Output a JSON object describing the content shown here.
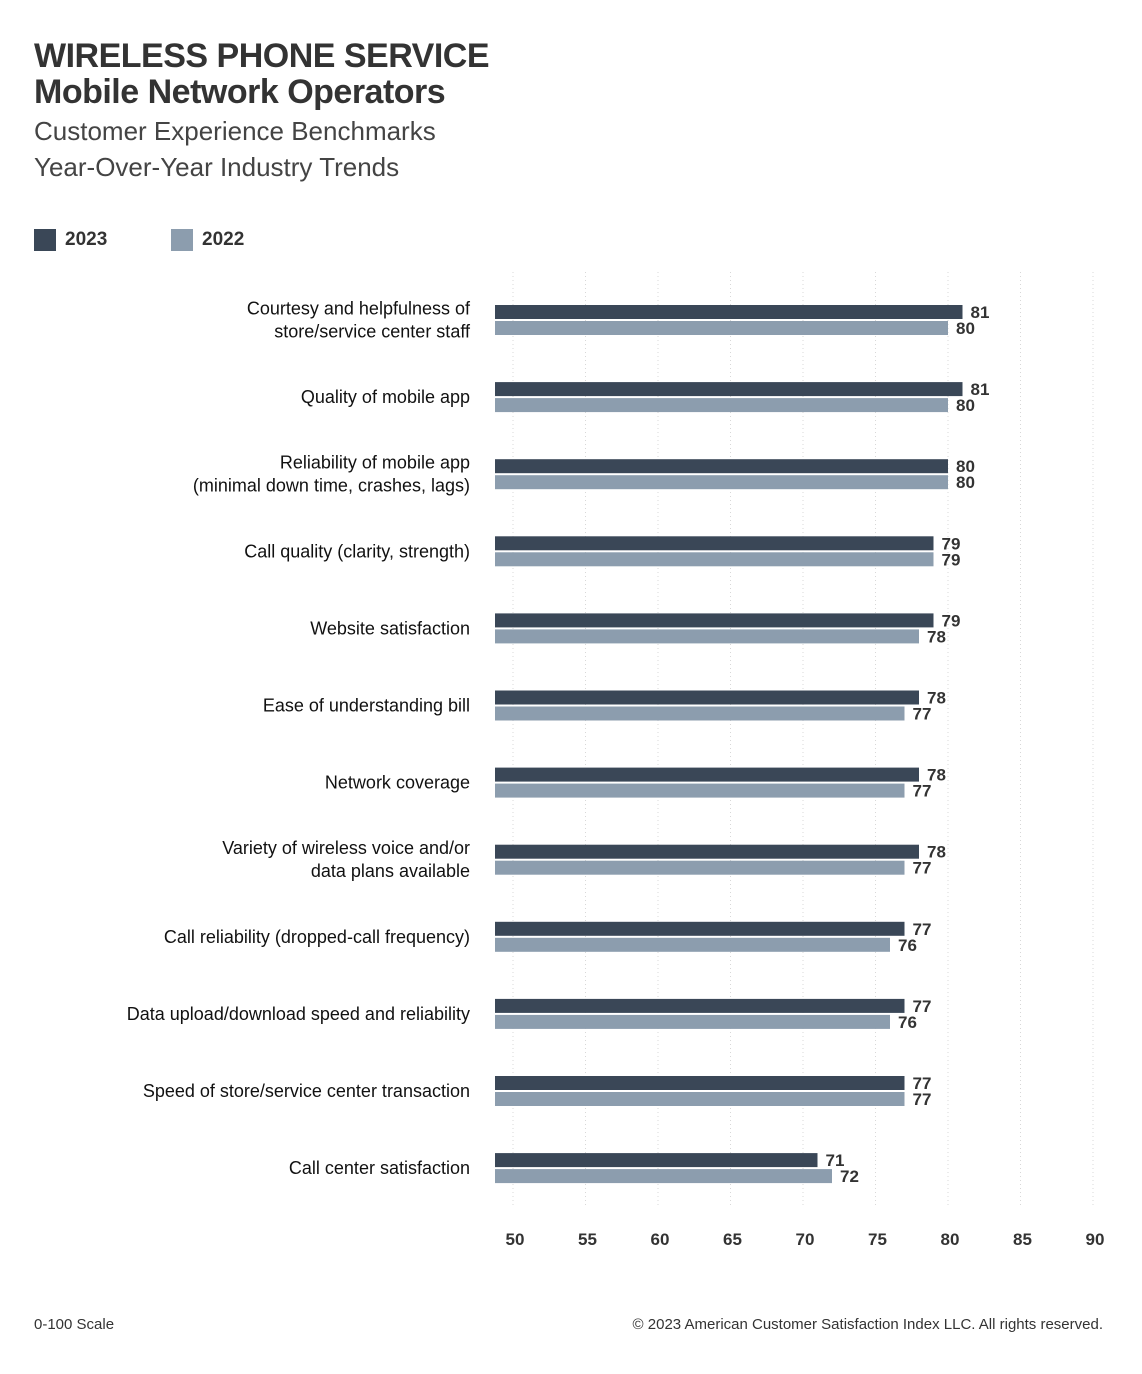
{
  "header": {
    "title_line1": "WIRELESS PHONE SERVICE",
    "title_line2": "Mobile Network Operators",
    "subtitle_line1": "Customer Experience Benchmarks",
    "subtitle_line2": "Year-Over-Year Industry Trends"
  },
  "footer": {
    "scale_note": "0-100 Scale",
    "copyright": "© 2023 American Customer Satisfaction Index LLC. All rights reserved."
  },
  "chart_data": {
    "type": "bar",
    "orientation": "horizontal",
    "xlim": [
      50,
      90
    ],
    "xticks": [
      50,
      55,
      60,
      65,
      70,
      75,
      80,
      85,
      90
    ],
    "grid": "vertical dotted",
    "legend_placement": "top-left",
    "categories": [
      [
        "Courtesy and helpfulness of",
        "store/service center staff"
      ],
      [
        "Quality of mobile app"
      ],
      [
        "Reliability of mobile app",
        "(minimal down time, crashes, lags)"
      ],
      [
        "Call quality (clarity, strength)"
      ],
      [
        "Website satisfaction"
      ],
      [
        "Ease of understanding bill"
      ],
      [
        "Network coverage"
      ],
      [
        "Variety of wireless voice and/or",
        "data plans available"
      ],
      [
        "Call reliability (dropped-call frequency)"
      ],
      [
        "Data upload/download speed and reliability"
      ],
      [
        "Speed of store/service center transaction"
      ],
      [
        "Call center satisfaction"
      ]
    ],
    "series": [
      {
        "name": "2023",
        "color": "#3a4757",
        "values": [
          81,
          81,
          80,
          79,
          79,
          78,
          78,
          78,
          77,
          77,
          77,
          71
        ]
      },
      {
        "name": "2022",
        "color": "#8c9dae",
        "values": [
          80,
          80,
          80,
          79,
          78,
          77,
          77,
          77,
          76,
          76,
          77,
          72
        ]
      }
    ]
  }
}
